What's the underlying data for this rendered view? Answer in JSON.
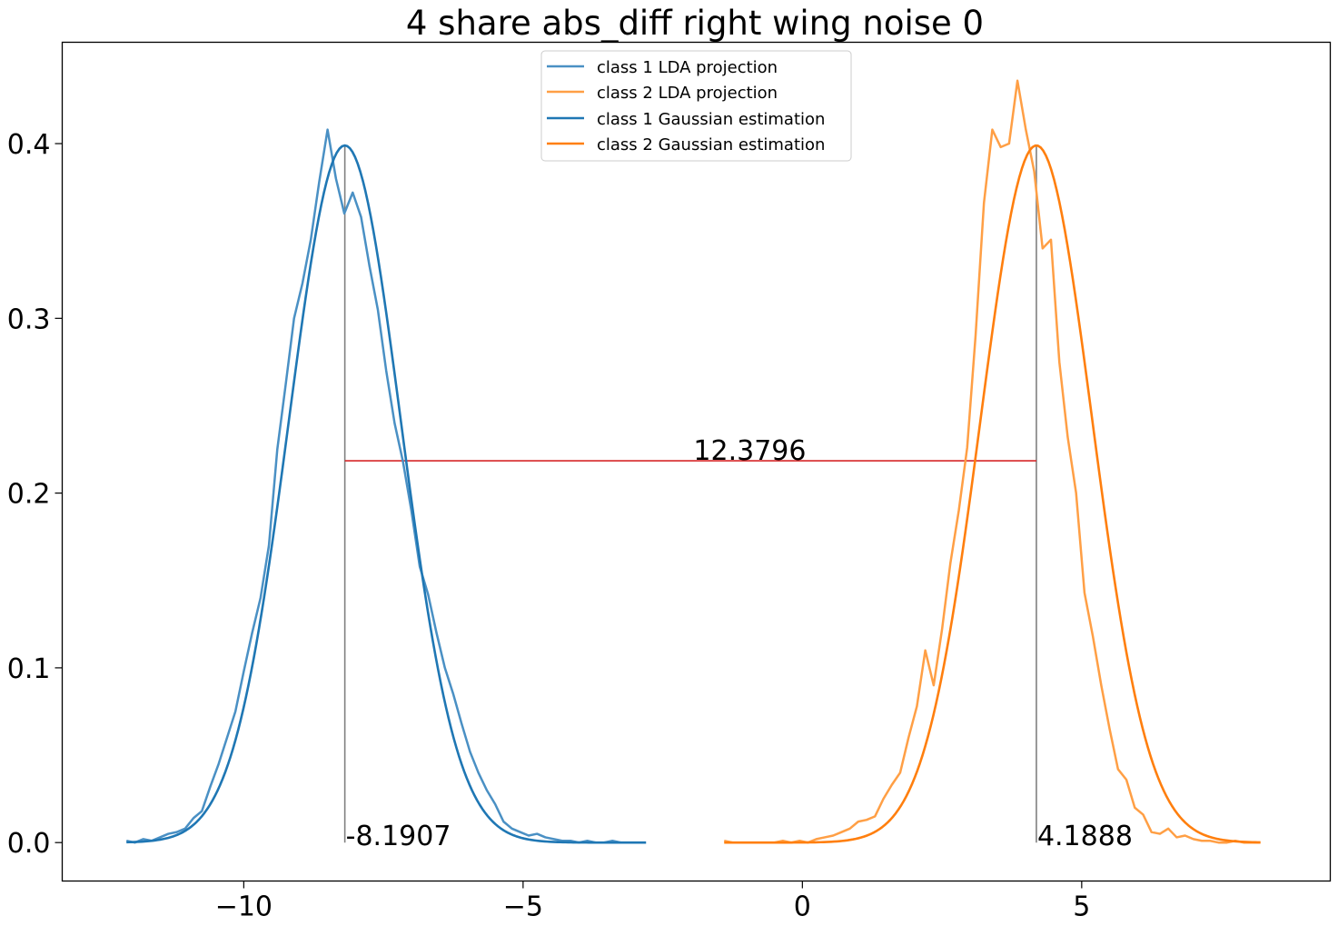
{
  "chart_data": {
    "type": "line",
    "title": "4 share abs_diff right wing noise 0",
    "xlabel": "",
    "ylabel": "",
    "xlim": [
      -13.25,
      9.45
    ],
    "ylim": [
      -0.022,
      0.458
    ],
    "xticks": [
      -10,
      -5,
      0,
      5
    ],
    "xtick_labels": [
      "−10",
      "−5",
      "0",
      "5"
    ],
    "yticks": [
      0.0,
      0.1,
      0.2,
      0.3,
      0.4
    ],
    "ytick_labels": [
      "0.0",
      "0.1",
      "0.2",
      "0.3",
      "0.4"
    ],
    "grid": false,
    "legend_position": "top-center",
    "series": [
      {
        "name": "class 1 LDA projection",
        "color": "#4a90c4",
        "x": [
          -12.1,
          -11.95,
          -11.8,
          -11.65,
          -11.5,
          -11.35,
          -11.2,
          -11.05,
          -10.9,
          -10.75,
          -10.6,
          -10.45,
          -10.3,
          -10.15,
          -10.0,
          -9.85,
          -9.7,
          -9.55,
          -9.4,
          -9.25,
          -9.1,
          -8.95,
          -8.8,
          -8.65,
          -8.5,
          -8.35,
          -8.2,
          -8.05,
          -7.9,
          -7.75,
          -7.6,
          -7.45,
          -7.3,
          -7.15,
          -7.0,
          -6.85,
          -6.7,
          -6.55,
          -6.4,
          -6.25,
          -6.1,
          -5.95,
          -5.8,
          -5.65,
          -5.5,
          -5.35,
          -5.2,
          -5.05,
          -4.9,
          -4.75,
          -4.6,
          -4.45,
          -4.3,
          -4.15,
          -4.0,
          -3.85,
          -3.7,
          -3.55,
          -3.4,
          -3.25,
          -3.1,
          -2.95,
          -2.8
        ],
        "values": [
          0.001,
          0.0,
          0.002,
          0.001,
          0.003,
          0.005,
          0.006,
          0.008,
          0.014,
          0.018,
          0.032,
          0.045,
          0.06,
          0.075,
          0.098,
          0.12,
          0.14,
          0.17,
          0.225,
          0.262,
          0.3,
          0.32,
          0.345,
          0.378,
          0.408,
          0.38,
          0.36,
          0.372,
          0.358,
          0.33,
          0.305,
          0.27,
          0.24,
          0.218,
          0.19,
          0.158,
          0.142,
          0.12,
          0.1,
          0.085,
          0.068,
          0.052,
          0.04,
          0.03,
          0.022,
          0.012,
          0.008,
          0.006,
          0.004,
          0.005,
          0.003,
          0.002,
          0.001,
          0.001,
          0.0,
          0.001,
          0.0,
          0.0,
          0.001,
          0.0,
          0.0,
          0.0,
          0.0
        ]
      },
      {
        "name": "class 2 LDA projection",
        "color": "#ff9f45",
        "x": [
          -1.4,
          -1.25,
          -1.1,
          -0.95,
          -0.8,
          -0.65,
          -0.5,
          -0.35,
          -0.2,
          -0.05,
          0.1,
          0.25,
          0.4,
          0.55,
          0.7,
          0.85,
          1.0,
          1.15,
          1.3,
          1.45,
          1.6,
          1.75,
          1.9,
          2.05,
          2.2,
          2.35,
          2.5,
          2.65,
          2.8,
          2.95,
          3.1,
          3.25,
          3.4,
          3.55,
          3.7,
          3.85,
          4.0,
          4.15,
          4.3,
          4.45,
          4.6,
          4.75,
          4.9,
          5.05,
          5.2,
          5.35,
          5.5,
          5.65,
          5.8,
          5.95,
          6.1,
          6.25,
          6.4,
          6.55,
          6.7,
          6.85,
          7.0,
          7.15,
          7.3,
          7.45,
          7.6,
          7.75,
          7.9,
          8.05,
          8.2
        ],
        "values": [
          0.001,
          0.0,
          0.0,
          0.0,
          0.0,
          0.0,
          0.0,
          0.001,
          0.0,
          0.001,
          0.0,
          0.002,
          0.003,
          0.004,
          0.006,
          0.008,
          0.012,
          0.013,
          0.015,
          0.025,
          0.033,
          0.04,
          0.06,
          0.078,
          0.11,
          0.09,
          0.122,
          0.16,
          0.19,
          0.226,
          0.29,
          0.366,
          0.408,
          0.398,
          0.4,
          0.436,
          0.408,
          0.384,
          0.34,
          0.345,
          0.275,
          0.232,
          0.2,
          0.143,
          0.118,
          0.09,
          0.065,
          0.042,
          0.036,
          0.02,
          0.016,
          0.006,
          0.005,
          0.008,
          0.003,
          0.004,
          0.002,
          0.001,
          0.001,
          0.0,
          0.0,
          0.001,
          0.0,
          0.0,
          0.0
        ]
      },
      {
        "name": "class 1 Gaussian estimation",
        "color": "#1f77b4",
        "mean": -8.1907,
        "std": 1.0,
        "xmin": -12.1,
        "xmax": -2.8
      },
      {
        "name": "class 2 Gaussian estimation",
        "color": "#ff7f0e",
        "mean": 4.1888,
        "std": 1.0,
        "xmin": -1.4,
        "xmax": 8.2
      }
    ],
    "annotations": [
      {
        "label": "-8.1907",
        "x": -8.1907,
        "y": 0.0
      },
      {
        "label": "4.1888",
        "x": 4.1888,
        "y": 0.0
      },
      {
        "label": "12.3796",
        "x": -1.95,
        "y": 0.2185
      }
    ],
    "vlines": [
      {
        "x": -8.1907,
        "y0": 0.0,
        "y1": 0.399,
        "color": "#808080"
      },
      {
        "x": 4.1888,
        "y0": 0.0,
        "y1": 0.399,
        "color": "#808080"
      }
    ],
    "hline": {
      "y": 0.2185,
      "x0": -8.1907,
      "x1": 4.1888,
      "color": "#d62728"
    }
  }
}
